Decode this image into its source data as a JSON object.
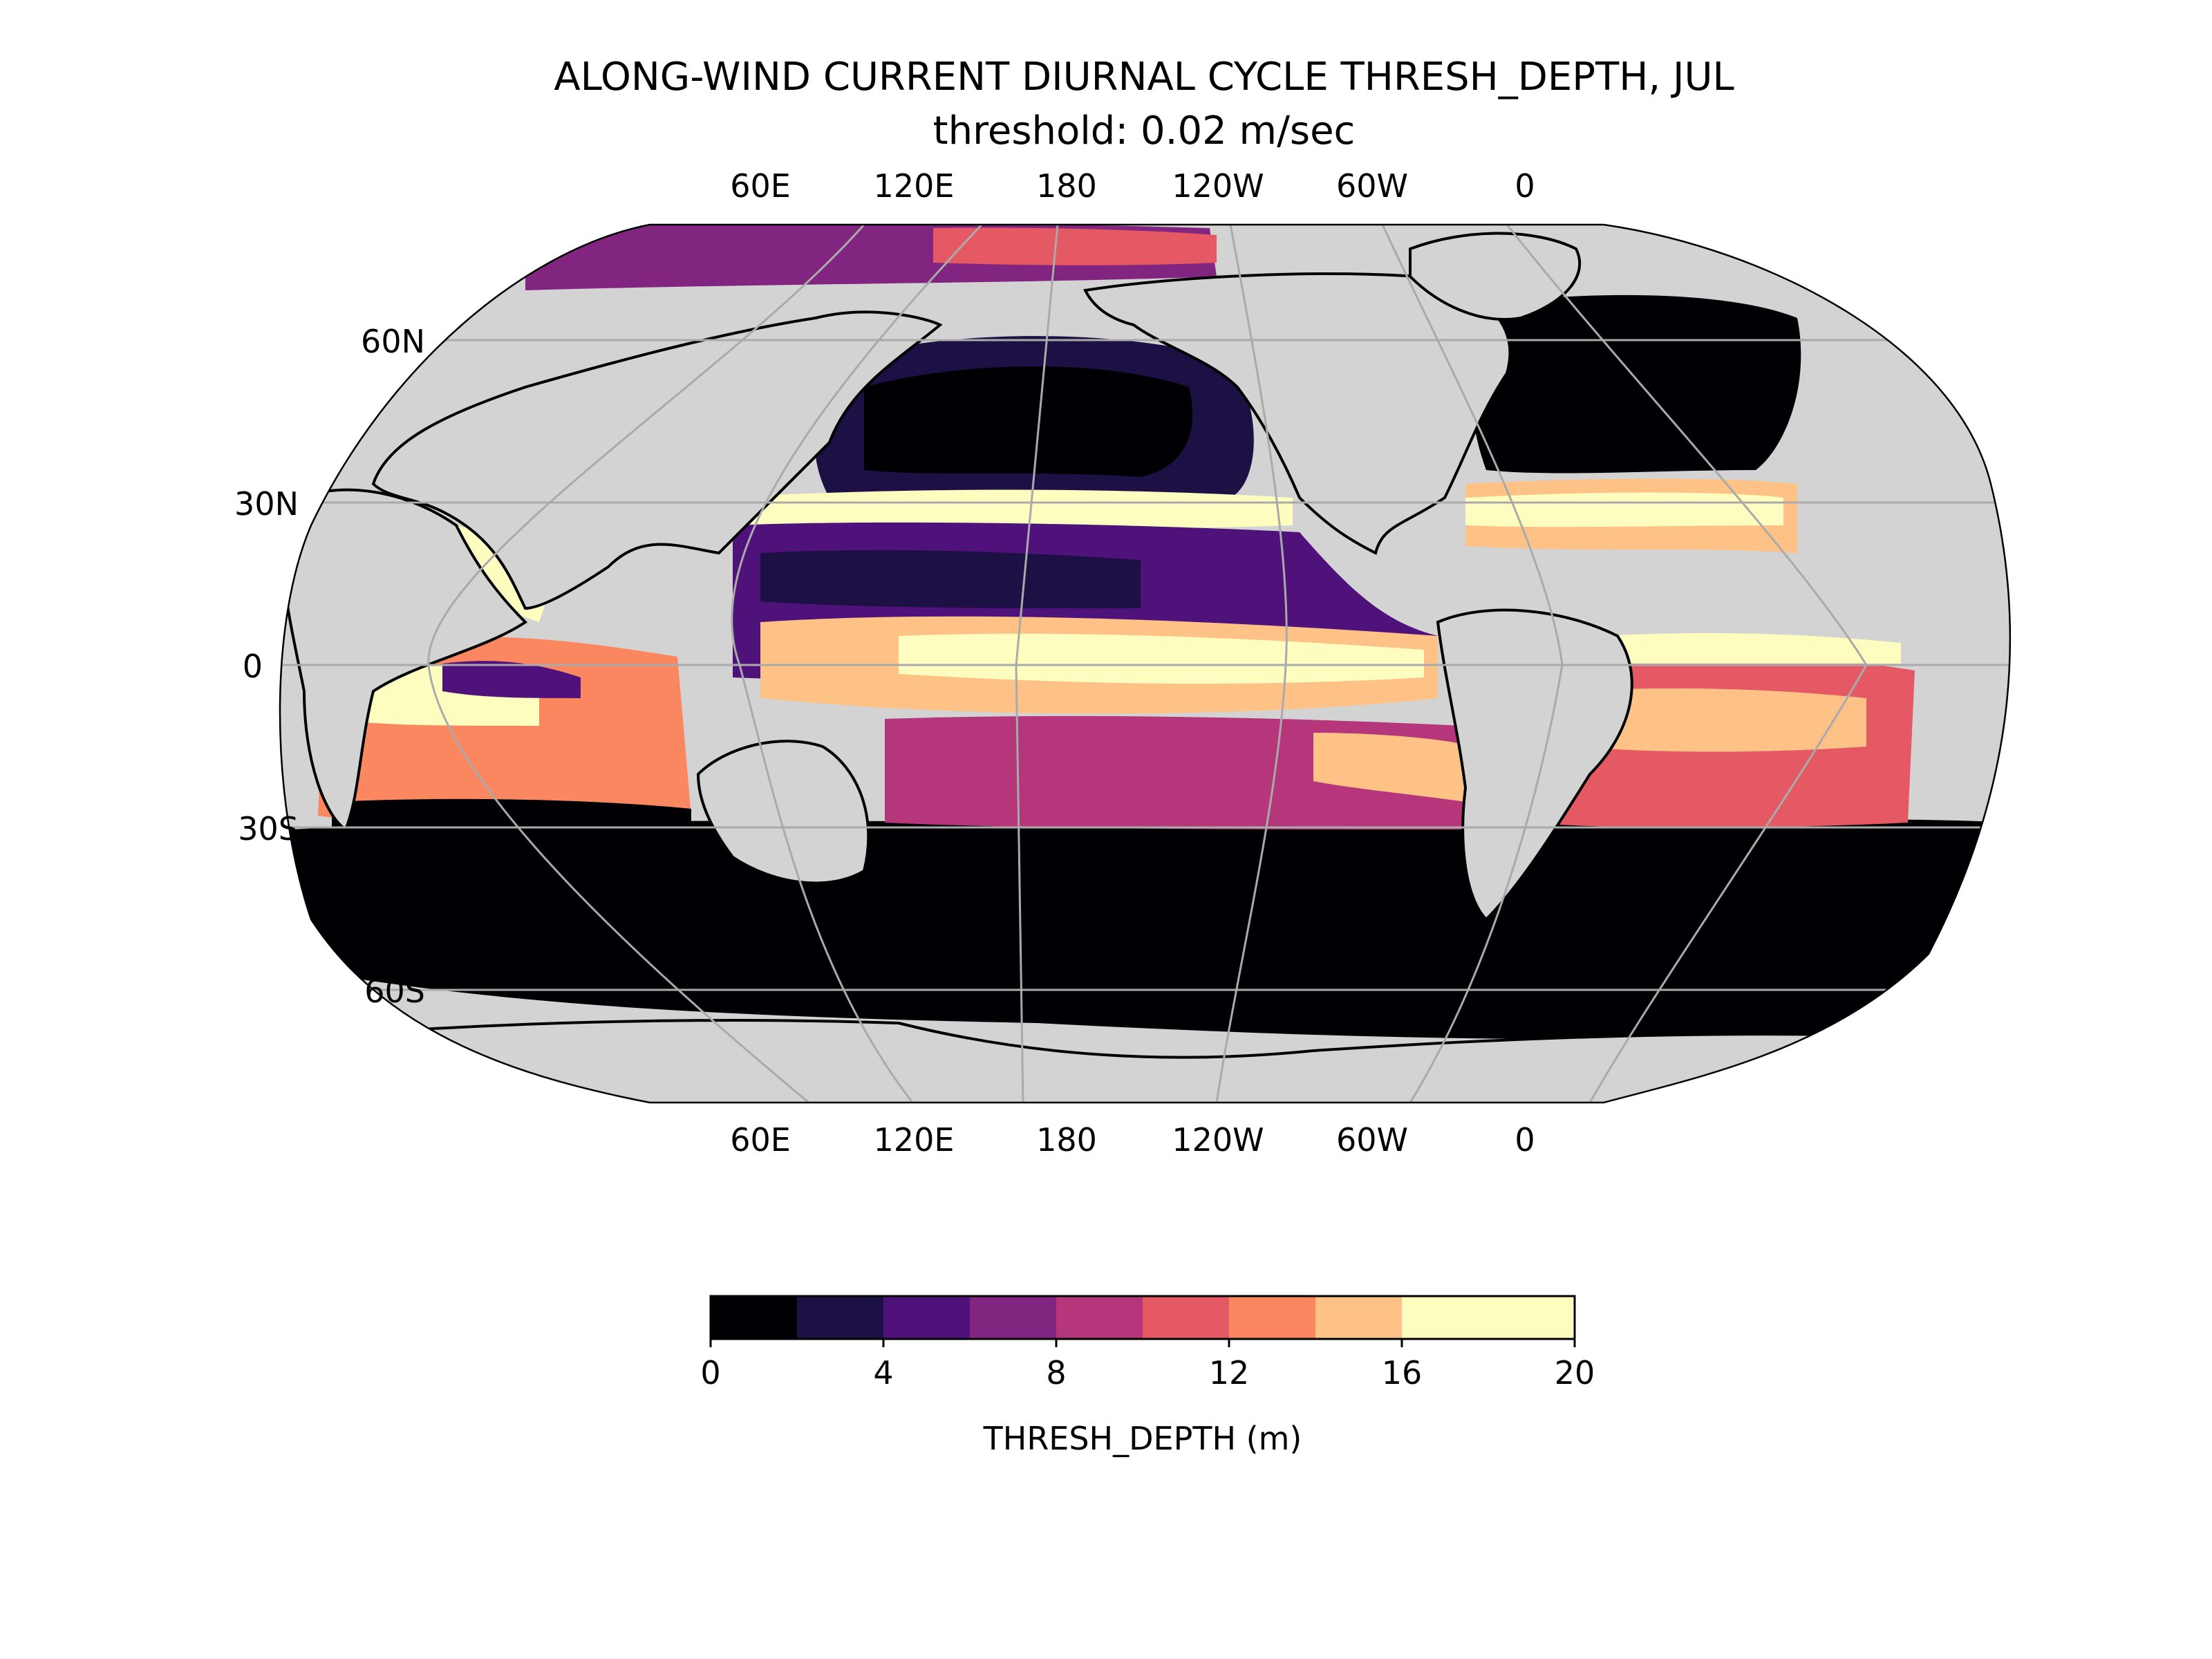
{
  "title": "ALONG-WIND CURRENT DIURNAL CYCLE THRESH_DEPTH, JUL",
  "subtitle": "threshold: 0.02 m/sec",
  "map": {
    "projection": "robinson",
    "central_longitude": 180,
    "land_color": "#d3d3d3",
    "gridline_color": "#aaaaaa",
    "lon_labels": [
      "60E",
      "120E",
      "180",
      "120W",
      "60W",
      "0"
    ],
    "lat_labels": [
      "60N",
      "30N",
      "0",
      "30S",
      "60S"
    ]
  },
  "colorbar": {
    "label": "THRESH_DEPTH (m)",
    "range": [
      0,
      20
    ],
    "step": 2,
    "tick_labels": [
      "0",
      "4",
      "8",
      "12",
      "16",
      "20"
    ],
    "colors": [
      "#000004",
      "#1c1044",
      "#4f127b",
      "#812581",
      "#b5367a",
      "#e55964",
      "#fb8761",
      "#fec287",
      "#fcfdbf",
      "#fcfdbf"
    ]
  }
}
